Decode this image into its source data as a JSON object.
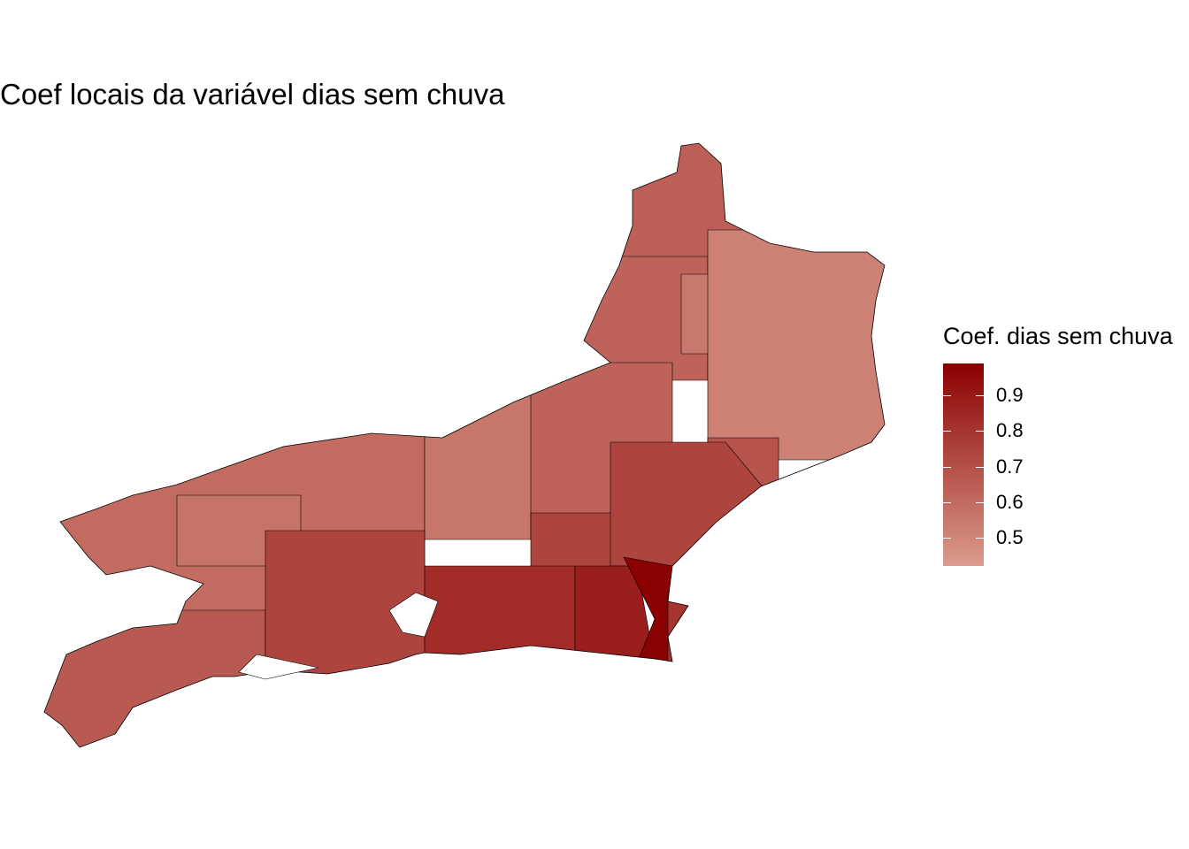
{
  "title": "Coef locais da variável dias sem chuva",
  "legend": {
    "title": "Coef. dias sem chuva",
    "min": 0.42,
    "max": 0.99,
    "ticks": [
      "0.5",
      "0.6",
      "0.7",
      "0.8",
      "0.9"
    ],
    "color_low": "#DB9C8D",
    "color_high": "#8B0000"
  },
  "map": {
    "type": "choropleth",
    "border_color": "#000000",
    "regions": [
      {
        "value": 0.6
      },
      {
        "value": 0.57
      },
      {
        "value": 0.66
      },
      {
        "value": 0.64
      },
      {
        "value": 0.63
      },
      {
        "value": 0.55
      },
      {
        "value": 0.52
      },
      {
        "value": 0.63
      },
      {
        "value": 0.56
      },
      {
        "value": 0.68
      },
      {
        "value": 0.74
      },
      {
        "value": 0.74
      },
      {
        "value": 0.74
      },
      {
        "value": 0.83
      },
      {
        "value": 0.88
      },
      {
        "value": 0.99
      },
      {
        "value": 0.8
      }
    ]
  }
}
